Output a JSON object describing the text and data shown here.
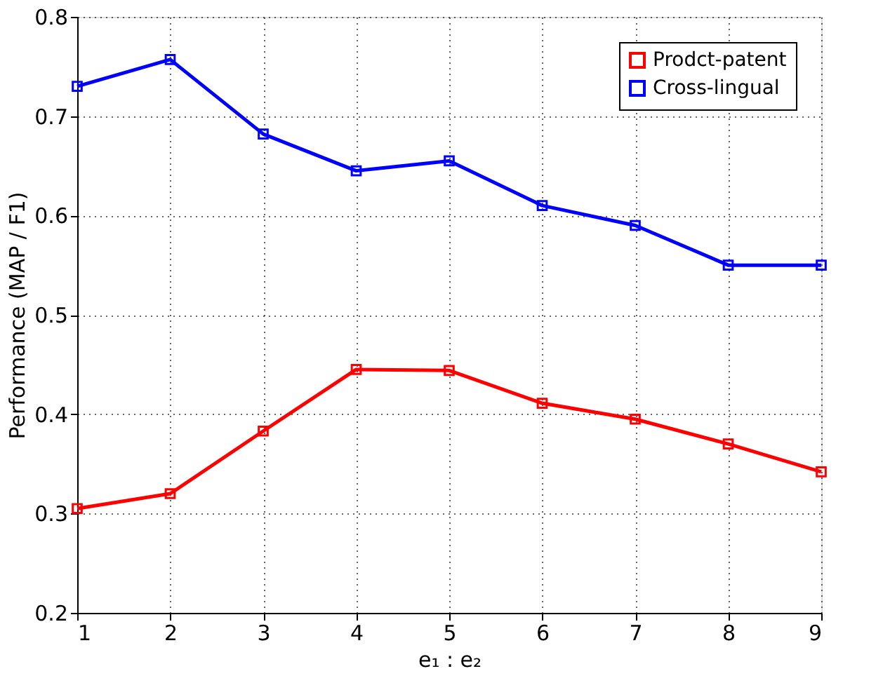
{
  "chart_data": {
    "type": "line",
    "xlabel": "e₁ : e₂",
    "ylabel": "Performance (MAP / F1)",
    "x": [
      1,
      2,
      3,
      4,
      5,
      6,
      7,
      8,
      9
    ],
    "series": [
      {
        "name": "Prodct-patent",
        "color": "#ff0000",
        "values": [
          0.305,
          0.32,
          0.383,
          0.445,
          0.444,
          0.411,
          0.395,
          0.37,
          0.342
        ]
      },
      {
        "name": "Cross-lingual",
        "color": "#0000ff",
        "values": [
          0.73,
          0.757,
          0.682,
          0.645,
          0.655,
          0.61,
          0.59,
          0.55,
          0.55
        ]
      }
    ],
    "xlim": [
      1,
      9
    ],
    "xticks": [
      1,
      2,
      3,
      4,
      5,
      6,
      7,
      8,
      9
    ],
    "ylim": [
      0.2,
      0.8
    ],
    "yticks": [
      0.2,
      0.3,
      0.4,
      0.5,
      0.6,
      0.7,
      0.8
    ],
    "grid": true,
    "legend": "top right",
    "marker": "square",
    "line_style": "solid"
  }
}
